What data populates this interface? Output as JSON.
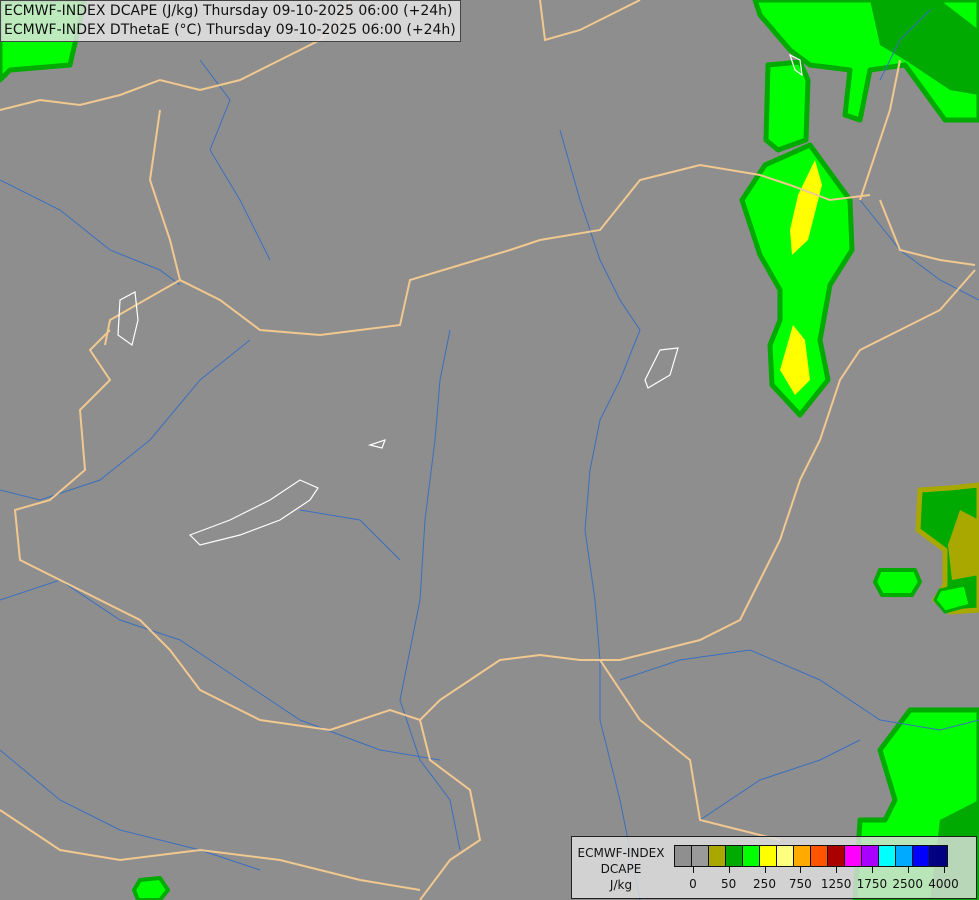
{
  "title": {
    "line1": "ECMWF-INDEX DCAPE (J/kg) Thursday 09-10-2025 06:00 (+24h)",
    "line2": "ECMWF-INDEX DThetaE (°C) Thursday 09-10-2025 06:00 (+24h)"
  },
  "legend": {
    "model": "ECMWF-INDEX",
    "parameter": "DCAPE",
    "unit": "J/kg",
    "colors": [
      "#8f8f8f",
      "#9a9a9a",
      "#a8a800",
      "#00aa00",
      "#00ff00",
      "#ffff00",
      "#ffff80",
      "#ffaa00",
      "#ff5500",
      "#aa0000",
      "#ff00ff",
      "#aa00ff",
      "#00ffff",
      "#00aaff",
      "#0000ff",
      "#000080"
    ],
    "ticks": [
      "0",
      "50",
      "250",
      "750",
      "1250",
      "1750",
      "2500",
      "4000"
    ]
  },
  "map_colors": {
    "background": "#8e8e8e",
    "border": "#f0c890",
    "river": "#3a6fc0",
    "lake": "#ffffff"
  }
}
